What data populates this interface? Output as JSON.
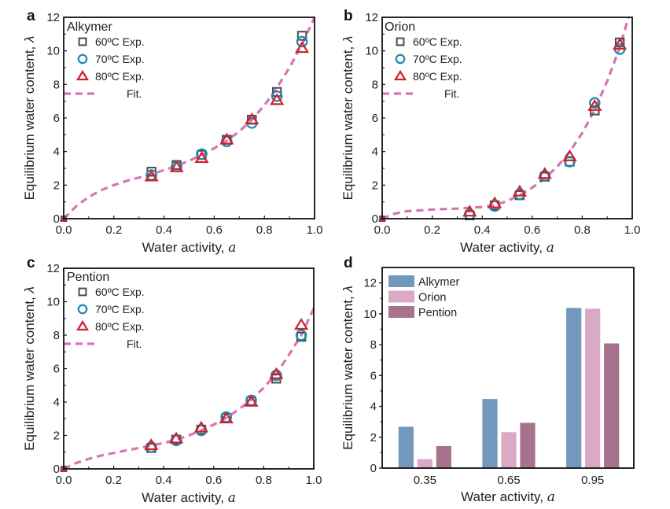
{
  "figure": {
    "colors": {
      "sq": "#4a4a4a",
      "circ": "#1a8ab0",
      "tri": "#d0202a",
      "fit": "#d874b4",
      "Alkymer": "#7299bd",
      "Orion": "#d9a9c6",
      "Pention": "#a6728d"
    }
  },
  "chart_data": [
    {
      "panel": "a",
      "type": "scatter",
      "title": "Alkymer",
      "xlabel": "Water activity, ",
      "xlabel_var": "a",
      "ylabel": "Equilibrium water content, ",
      "ylabel_var": "λ",
      "xlim": [
        0,
        1.0
      ],
      "ylim": [
        0,
        12
      ],
      "xticks": [
        "0.0",
        "0.2",
        "0.4",
        "0.6",
        "0.8",
        "1.0"
      ],
      "xtick_values": [
        0,
        0.2,
        0.4,
        0.6,
        0.8,
        1.0
      ],
      "yticks": [
        "0",
        "2",
        "4",
        "6",
        "8",
        "10",
        "12"
      ],
      "ytick_values": [
        0,
        2,
        4,
        6,
        8,
        10,
        12
      ],
      "legend_position": "top-left",
      "x": [
        0,
        0.35,
        0.45,
        0.55,
        0.65,
        0.75,
        0.85,
        0.95
      ],
      "series": [
        {
          "name": "60ºC Exp.",
          "marker": "square",
          "values": [
            0,
            2.8,
            3.2,
            3.8,
            4.7,
            5.9,
            7.55,
            10.9
          ]
        },
        {
          "name": "70ºC Exp.",
          "marker": "circle",
          "values": [
            0,
            2.6,
            3.1,
            3.85,
            4.6,
            5.7,
            7.3,
            10.55
          ]
        },
        {
          "name": "80ºC Exp.",
          "marker": "triangle",
          "values": [
            0,
            2.5,
            3.05,
            3.6,
            4.7,
            5.9,
            7.05,
            10.15
          ]
        }
      ],
      "fit": {
        "name": "Fit.",
        "x": [
          0,
          0.05,
          0.1,
          0.15,
          0.2,
          0.25,
          0.3,
          0.35,
          0.4,
          0.45,
          0.5,
          0.55,
          0.6,
          0.65,
          0.7,
          0.75,
          0.8,
          0.85,
          0.9,
          0.95,
          1.0
        ],
        "y": [
          0,
          0.75,
          1.3,
          1.7,
          2.0,
          2.25,
          2.45,
          2.65,
          2.9,
          3.15,
          3.45,
          3.8,
          4.2,
          4.65,
          5.2,
          5.9,
          6.75,
          7.8,
          9.0,
          10.4,
          12.0
        ]
      }
    },
    {
      "panel": "b",
      "type": "scatter",
      "title": "Orion",
      "xlabel": "Water activity, ",
      "xlabel_var": "a",
      "ylabel": "Equilibrium water content, ",
      "ylabel_var": "λ",
      "xlim": [
        0,
        1.0
      ],
      "ylim": [
        0,
        12
      ],
      "xticks": [
        "0.0",
        "0.2",
        "0.4",
        "0.6",
        "0.8",
        "1.0"
      ],
      "xtick_values": [
        0,
        0.2,
        0.4,
        0.6,
        0.8,
        1.0
      ],
      "yticks": [
        "0",
        "2",
        "4",
        "6",
        "8",
        "10",
        "12"
      ],
      "ytick_values": [
        0,
        2,
        4,
        6,
        8,
        10,
        12
      ],
      "legend_position": "top-left",
      "x": [
        0,
        0.35,
        0.45,
        0.55,
        0.65,
        0.75,
        0.85,
        0.95
      ],
      "series": [
        {
          "name": "60ºC Exp.",
          "marker": "square",
          "values": [
            0,
            0.2,
            0.8,
            1.4,
            2.5,
            3.4,
            6.45,
            10.5
          ]
        },
        {
          "name": "70ºC Exp.",
          "marker": "circle",
          "values": [
            0,
            0.25,
            0.75,
            1.45,
            2.55,
            3.4,
            6.9,
            10.1
          ]
        },
        {
          "name": "80ºC Exp.",
          "marker": "triangle",
          "values": [
            0,
            0.4,
            0.9,
            1.6,
            2.65,
            3.7,
            6.7,
            10.35
          ]
        }
      ],
      "fit": {
        "name": "Fit.",
        "x": [
          0,
          0.05,
          0.1,
          0.2,
          0.3,
          0.4,
          0.45,
          0.5,
          0.55,
          0.6,
          0.65,
          0.7,
          0.75,
          0.8,
          0.85,
          0.9,
          0.95,
          0.985
        ],
        "y": [
          0,
          0.3,
          0.45,
          0.55,
          0.6,
          0.7,
          0.8,
          1.05,
          1.4,
          1.85,
          2.4,
          3.1,
          4.0,
          5.1,
          6.5,
          8.2,
          10.2,
          12.0
        ]
      }
    },
    {
      "panel": "c",
      "type": "scatter",
      "title": "Pention",
      "xlabel": "Water activity, ",
      "xlabel_var": "a",
      "ylabel": "Equilibrium water content, ",
      "ylabel_var": "λ",
      "xlim": [
        0,
        1.0
      ],
      "ylim": [
        0,
        12
      ],
      "xticks": [
        "0.0",
        "0.2",
        "0.4",
        "0.6",
        "0.8",
        "1.0"
      ],
      "xtick_values": [
        0,
        0.2,
        0.4,
        0.6,
        0.8,
        1.0
      ],
      "yticks": [
        "0",
        "2",
        "4",
        "6",
        "8",
        "10",
        "12"
      ],
      "ytick_values": [
        0,
        2,
        4,
        6,
        8,
        10,
        12
      ],
      "legend_position": "top-left",
      "x": [
        0,
        0.35,
        0.45,
        0.55,
        0.65,
        0.75,
        0.85,
        0.95
      ],
      "series": [
        {
          "name": "60ºC Exp.",
          "marker": "square",
          "values": [
            0,
            1.25,
            1.75,
            2.35,
            3.05,
            4.05,
            5.4,
            7.9
          ]
        },
        {
          "name": "70ºC Exp.",
          "marker": "circle",
          "values": [
            0,
            1.3,
            1.7,
            2.3,
            3.1,
            4.1,
            5.6,
            8.0
          ]
        },
        {
          "name": "80ºC Exp.",
          "marker": "triangle",
          "values": [
            0,
            1.4,
            1.8,
            2.45,
            3.0,
            4.0,
            5.65,
            8.6
          ]
        }
      ],
      "fit": {
        "name": "Fit.",
        "x": [
          0,
          0.05,
          0.1,
          0.15,
          0.2,
          0.25,
          0.3,
          0.35,
          0.4,
          0.45,
          0.5,
          0.55,
          0.6,
          0.65,
          0.7,
          0.75,
          0.8,
          0.85,
          0.9,
          0.95,
          1.0
        ],
        "y": [
          0,
          0.35,
          0.6,
          0.8,
          0.95,
          1.1,
          1.25,
          1.4,
          1.55,
          1.75,
          2.0,
          2.3,
          2.65,
          3.05,
          3.55,
          4.15,
          4.85,
          5.7,
          6.8,
          8.0,
          9.6
        ]
      }
    },
    {
      "panel": "d",
      "type": "bar",
      "title": "",
      "xlabel": "Water activity, ",
      "xlabel_var": "a",
      "ylabel": "Equilibrium water content, ",
      "ylabel_var": "λ",
      "ylim": [
        0,
        13
      ],
      "yticks": [
        "0",
        "2",
        "4",
        "6",
        "8",
        "10",
        "12"
      ],
      "ytick_values": [
        0,
        2,
        4,
        6,
        8,
        10,
        12
      ],
      "legend_position": "top-left",
      "categories": [
        "0.35",
        "0.65",
        "0.95"
      ],
      "series": [
        {
          "name": "Alkymer",
          "values": [
            2.7,
            4.5,
            10.4
          ]
        },
        {
          "name": "Orion",
          "values": [
            0.6,
            2.35,
            10.35
          ]
        },
        {
          "name": "Pention",
          "values": [
            1.45,
            2.95,
            8.1
          ]
        }
      ]
    }
  ]
}
